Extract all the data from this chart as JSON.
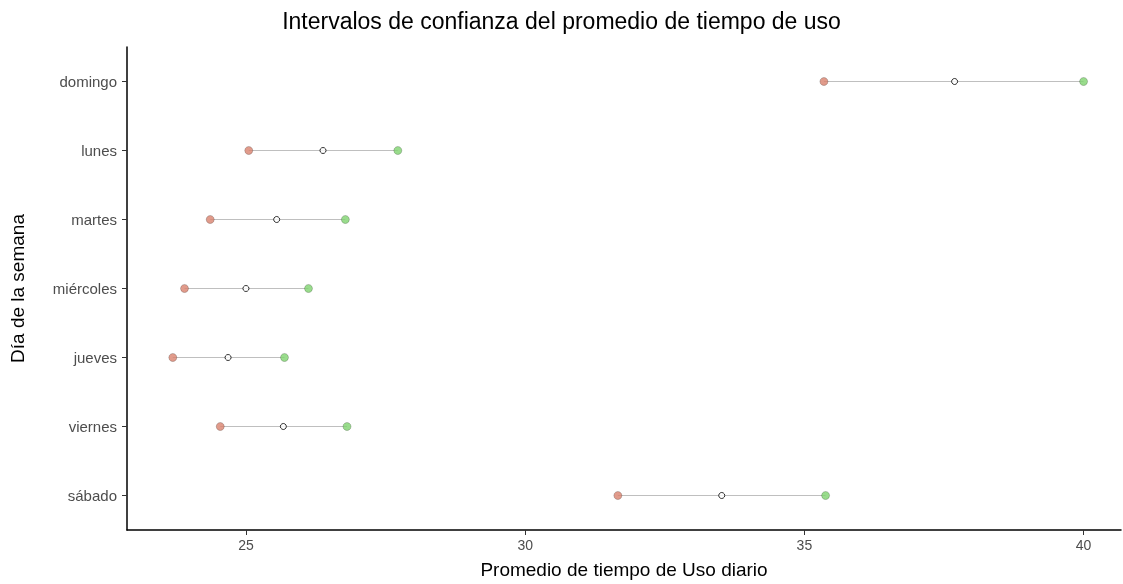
{
  "chart_data": {
    "type": "scatter",
    "title": "Intervalos de confianza del promedio de tiempo de uso",
    "xlabel": "Promedio de tiempo de Uso diario",
    "ylabel": "Día de la semana",
    "orientation": "horizontal",
    "categories": [
      "domingo",
      "lunes",
      "martes",
      "miércoles",
      "jueves",
      "viernes",
      "sábado"
    ],
    "series": [
      {
        "color": "#d9826e",
        "values": [
          35.35,
          25.05,
          24.36,
          23.9,
          23.69,
          24.54,
          31.66
        ]
      },
      {
        "color": "#ffffff",
        "values": [
          37.69,
          26.38,
          25.55,
          25.0,
          24.68,
          25.67,
          33.52
        ]
      },
      {
        "color": "#7fd36f",
        "values": [
          40.0,
          27.72,
          26.78,
          26.12,
          25.69,
          26.81,
          35.38
        ]
      }
    ],
    "xlim": [
      22.87,
      40.67
    ],
    "xticks": [
      25,
      30,
      35,
      40
    ],
    "grid": false,
    "marker": "circle"
  }
}
